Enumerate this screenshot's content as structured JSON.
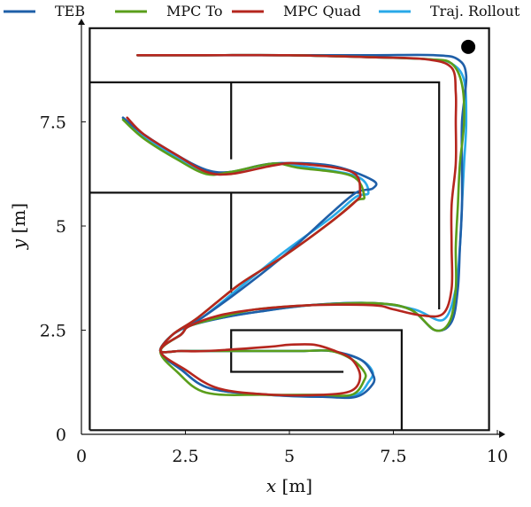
{
  "chart_data": {
    "type": "line",
    "xlabel_var": "x",
    "xlabel_unit": "[m]",
    "ylabel_var": "y",
    "ylabel_unit": "[m]",
    "xlim": [
      0,
      10
    ],
    "ylim": [
      0,
      10
    ],
    "xticks": [
      0,
      2.5,
      5,
      7.5,
      10
    ],
    "xtick_labels": [
      "0",
      "2.5",
      "5",
      "7.5",
      "10"
    ],
    "yticks": [
      0,
      2.5,
      5,
      7.5
    ],
    "ytick_labels": [
      "0",
      "2.5",
      "5",
      "7.5"
    ],
    "grid": false,
    "legend_position": "top",
    "goal_marker": {
      "x": 9.3,
      "y": 9.3
    },
    "walls": [
      [
        [
          0.2,
          0.1
        ],
        [
          9.8,
          0.1
        ],
        [
          9.8,
          9.75
        ],
        [
          0.2,
          9.75
        ],
        [
          0.2,
          0.1
        ]
      ],
      [
        [
          0.2,
          8.45
        ],
        [
          8.6,
          8.45
        ],
        [
          8.6,
          3.0
        ]
      ],
      [
        [
          3.6,
          8.45
        ],
        [
          3.6,
          6.6
        ]
      ],
      [
        [
          0.2,
          5.8
        ],
        [
          6.7,
          5.8
        ]
      ],
      [
        [
          3.6,
          5.8
        ],
        [
          3.6,
          3.4
        ]
      ],
      [
        [
          7.7,
          0.1
        ],
        [
          7.7,
          2.5
        ],
        [
          3.6,
          2.5
        ],
        [
          3.6,
          1.5
        ],
        [
          6.3,
          1.5
        ]
      ]
    ],
    "series": [
      {
        "name": "TEB",
        "color": "#1f5fa8",
        "x": [
          1.35,
          3.0,
          5.0,
          7.0,
          8.5,
          9.05,
          9.25,
          9.15,
          9.15,
          9.15,
          9.1,
          9.05,
          8.9,
          8.5,
          7.9,
          7.0,
          5.5,
          4.3,
          3.4,
          2.6,
          2.4,
          1.9,
          2.4,
          3.1,
          4.5,
          5.8,
          6.6,
          7.0,
          7.0,
          6.7,
          6.0,
          5.3,
          4.4,
          3.0,
          2.4,
          1.9,
          2.2,
          2.9,
          4.0,
          5.0,
          6.0,
          6.6,
          7.0,
          7.0,
          6.0,
          4.6,
          3.6,
          3.0,
          2.3,
          1.5,
          1.0
        ],
        "y": [
          9.1,
          9.1,
          9.1,
          9.1,
          9.1,
          9.0,
          8.6,
          7.5,
          6.5,
          5.5,
          4.5,
          3.5,
          2.7,
          2.5,
          3.0,
          3.15,
          3.1,
          2.95,
          2.8,
          2.6,
          2.4,
          2.0,
          1.55,
          1.1,
          0.95,
          0.9,
          0.9,
          1.2,
          1.45,
          1.8,
          2.0,
          2.0,
          2.0,
          2.0,
          2.0,
          2.0,
          2.4,
          2.8,
          3.6,
          4.4,
          5.3,
          5.8,
          5.9,
          6.1,
          6.45,
          6.5,
          6.3,
          6.35,
          6.7,
          7.2,
          7.6
        ]
      },
      {
        "name": "MPC To",
        "color": "#5a9e1b",
        "x": [
          1.35,
          3.0,
          5.0,
          7.0,
          8.4,
          8.9,
          9.15,
          9.2,
          9.1,
          9.05,
          9.0,
          9.0,
          8.85,
          8.5,
          7.9,
          7.0,
          5.5,
          4.2,
          3.3,
          2.6,
          2.4,
          1.9,
          2.3,
          3.0,
          4.4,
          5.7,
          6.5,
          6.8,
          6.8,
          6.5,
          6.0,
          5.3,
          4.4,
          3.0,
          2.4,
          1.9,
          2.2,
          2.8,
          3.8,
          4.9,
          6.0,
          6.6,
          6.8,
          6.5,
          5.2,
          4.6,
          3.6,
          3.0,
          2.3,
          1.5,
          1.0
        ],
        "y": [
          9.1,
          9.1,
          9.1,
          9.05,
          9.0,
          8.9,
          8.4,
          7.5,
          6.5,
          5.5,
          4.5,
          3.5,
          2.7,
          2.5,
          3.0,
          3.15,
          3.1,
          3.0,
          2.8,
          2.6,
          2.4,
          2.0,
          1.5,
          1.0,
          0.95,
          0.95,
          0.95,
          1.3,
          1.5,
          1.8,
          2.0,
          2.0,
          2.0,
          2.0,
          2.0,
          2.0,
          2.4,
          2.8,
          3.6,
          4.3,
          5.1,
          5.6,
          5.7,
          6.2,
          6.4,
          6.5,
          6.3,
          6.25,
          6.6,
          7.1,
          7.55
        ]
      },
      {
        "name": "MPC Quad",
        "color": "#b5261e",
        "x": [
          1.35,
          3.0,
          5.0,
          7.0,
          8.3,
          8.9,
          9.0,
          9.0,
          9.0,
          8.9,
          8.9,
          8.9,
          8.7,
          8.2,
          7.5,
          7.0,
          5.5,
          4.2,
          3.3,
          2.6,
          2.4,
          1.9,
          2.5,
          3.3,
          4.6,
          5.8,
          6.5,
          6.7,
          6.5,
          6.1,
          5.6,
          5.0,
          4.5,
          3.0,
          2.4,
          1.9,
          2.2,
          2.8,
          3.8,
          4.9,
          6.0,
          6.6,
          6.7,
          6.5,
          5.2,
          4.6,
          3.6,
          3.0,
          2.3,
          1.5,
          1.1
        ],
        "y": [
          9.1,
          9.1,
          9.1,
          9.05,
          9.0,
          8.8,
          8.2,
          7.5,
          6.5,
          5.5,
          4.5,
          3.5,
          2.9,
          2.85,
          3.0,
          3.1,
          3.1,
          3.0,
          2.85,
          2.6,
          2.4,
          2.0,
          1.55,
          1.1,
          0.95,
          0.95,
          1.05,
          1.4,
          1.8,
          2.0,
          2.15,
          2.15,
          2.1,
          2.0,
          2.0,
          2.0,
          2.4,
          2.8,
          3.6,
          4.3,
          5.1,
          5.6,
          5.8,
          6.3,
          6.5,
          6.45,
          6.25,
          6.3,
          6.7,
          7.2,
          7.6
        ]
      },
      {
        "name": "Traj. Rollout",
        "color": "#29a9e8",
        "x": [
          1.35,
          3.0,
          5.0,
          7.0,
          8.4,
          8.9,
          9.2,
          9.25,
          9.2,
          9.15,
          9.1,
          9.0,
          8.7,
          8.0,
          7.0,
          5.5,
          4.3,
          3.4,
          2.6,
          2.4,
          1.9,
          2.4,
          3.1,
          4.5,
          5.8,
          6.6,
          6.9,
          7.0,
          6.7,
          6.0,
          5.3,
          4.4,
          3.0,
          2.4,
          1.9,
          2.2,
          2.9,
          3.9,
          4.9,
          6.0,
          6.6,
          6.9,
          6.6,
          5.2,
          4.6,
          3.6,
          3.0,
          2.3,
          1.5,
          1.0
        ],
        "y": [
          9.1,
          9.1,
          9.1,
          9.05,
          9.0,
          8.9,
          8.5,
          7.5,
          6.5,
          5.5,
          4.5,
          3.5,
          2.75,
          3.0,
          3.15,
          3.1,
          2.95,
          2.8,
          2.6,
          2.4,
          2.0,
          1.55,
          1.1,
          0.95,
          0.9,
          0.95,
          1.25,
          1.5,
          1.8,
          2.0,
          2.0,
          2.0,
          2.0,
          2.0,
          2.0,
          2.4,
          2.8,
          3.6,
          4.4,
          5.2,
          5.7,
          5.8,
          6.2,
          6.45,
          6.5,
          6.3,
          6.3,
          6.65,
          7.15,
          7.6
        ]
      }
    ]
  }
}
